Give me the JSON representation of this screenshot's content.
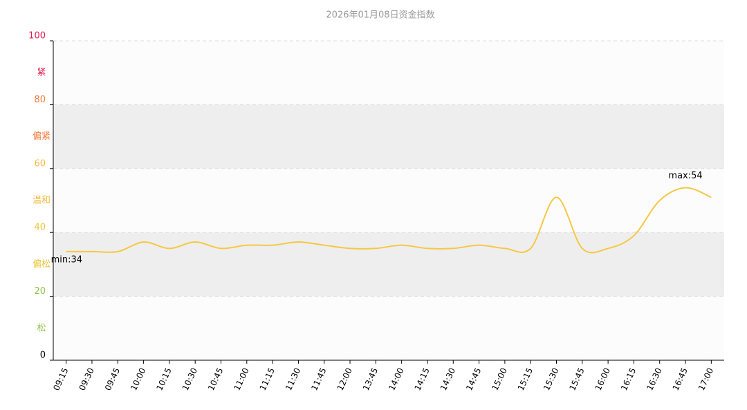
{
  "chart_data": {
    "type": "line",
    "title": "2026年01月08日资金指数",
    "categories": [
      "09:15",
      "09:30",
      "09:45",
      "10:00",
      "10:15",
      "10:30",
      "10:45",
      "11:00",
      "11:15",
      "11:30",
      "11:45",
      "12:00",
      "13:45",
      "14:00",
      "14:15",
      "14:30",
      "14:45",
      "15:00",
      "15:15",
      "15:30",
      "15:45",
      "16:00",
      "16:15",
      "16:30",
      "16:45",
      "17:00"
    ],
    "series": [
      {
        "color": "#f5c842",
        "values": [
          34,
          34,
          34,
          37,
          35,
          37,
          35,
          36,
          36,
          37,
          36,
          35,
          35,
          36,
          35,
          35,
          36,
          35,
          35,
          51,
          35,
          35,
          39,
          50,
          54,
          51
        ]
      }
    ],
    "ylim": [
      0,
      100
    ],
    "yticks": [
      0,
      20,
      40,
      60,
      80,
      100
    ],
    "ytick_colors": [
      "#000000",
      "#8fc34a",
      "#e8c43a",
      "#f5b942",
      "#f07a3a",
      "#e8194a"
    ],
    "bands": [
      {
        "from": 0,
        "to": 20,
        "label": "松",
        "color": "#8fc34a",
        "fill": "#fcfcfc"
      },
      {
        "from": 20,
        "to": 40,
        "label": "偏松",
        "color": "#e8c43a",
        "fill": "#eeeeee"
      },
      {
        "from": 40,
        "to": 60,
        "label": "温和",
        "color": "#f5b942",
        "fill": "#fcfcfc"
      },
      {
        "from": 60,
        "to": 80,
        "label": "偏紧",
        "color": "#f07a3a",
        "fill": "#eeeeee"
      },
      {
        "from": 80,
        "to": 100,
        "label": "紧",
        "color": "#e8194a",
        "fill": "#fcfcfc"
      }
    ],
    "annotations": [
      {
        "label": "min:34",
        "category": "09:15",
        "value": 34
      },
      {
        "label": "max:54",
        "category": "16:45",
        "value": 54
      }
    ],
    "grid": true
  }
}
